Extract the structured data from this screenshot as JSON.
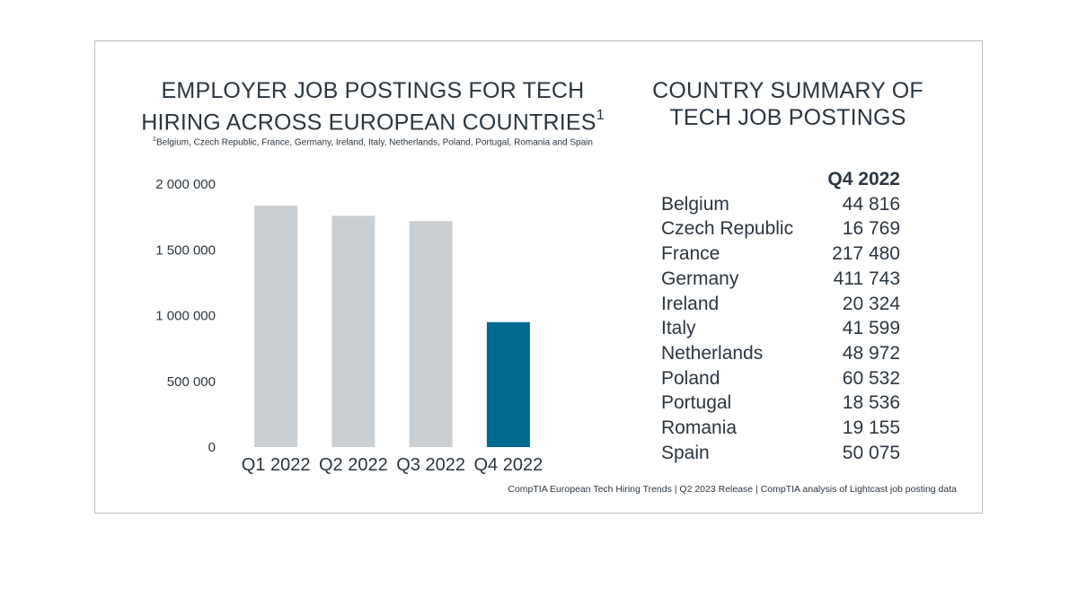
{
  "chart_title_text": "EMPLOYER JOB POSTINGS FOR TECH HIRING ACROSS EUROPEAN COUNTRIES",
  "chart_title_line1": "EMPLOYER JOB POSTINGS FOR TECH",
  "chart_title_line2": "HIRING ACROSS EUROPEAN COUNTRIES",
  "footnote_marker": "1",
  "footnote_text": "Belgium, Czech Republic, France, Germany, Ireland, Italy, Netherlands, Poland, Portugal, Romania and Spain",
  "summary": {
    "title_line1": "COUNTRY SUMMARY OF",
    "title_line2": "TECH JOB POSTINGS",
    "column_header": "Q4 2022",
    "rows": [
      {
        "country": "Belgium",
        "value": "44 816"
      },
      {
        "country": "Czech Republic",
        "value": "16 769"
      },
      {
        "country": "France",
        "value": "217 480"
      },
      {
        "country": "Germany",
        "value": "411 743"
      },
      {
        "country": "Ireland",
        "value": "20 324"
      },
      {
        "country": "Italy",
        "value": "41 599"
      },
      {
        "country": "Netherlands",
        "value": "48 972"
      },
      {
        "country": "Poland",
        "value": "60 532"
      },
      {
        "country": "Portugal",
        "value": "18 536"
      },
      {
        "country": "Romania",
        "value": "19 155"
      },
      {
        "country": "Spain",
        "value": "50 075"
      }
    ]
  },
  "source": "CompTIA European Tech Hiring Trends | Q2 2023 Release | CompTIA analysis of Lightcast job posting data",
  "colors": {
    "bar_default": "#c9ced2",
    "bar_highlight": "#006990",
    "text": "#2b3640",
    "border": "#b9bec3"
  },
  "chart_data": {
    "type": "bar",
    "categories": [
      "Q1 2022",
      "Q2 2022",
      "Q3 2022",
      "Q4 2022"
    ],
    "values": [
      1835000,
      1758000,
      1718000,
      950000
    ],
    "highlight_index": 3,
    "title": "EMPLOYER JOB POSTINGS FOR TECH HIRING ACROSS EUROPEAN COUNTRIES",
    "xlabel": "",
    "ylabel": "",
    "ylim": [
      0,
      2000000
    ],
    "yticks": [
      0,
      500000,
      1000000,
      1500000,
      2000000
    ],
    "ytick_labels": [
      "0",
      "500 000",
      "1 000 000",
      "1 500 000",
      "2 000 000"
    ],
    "grid": false
  }
}
